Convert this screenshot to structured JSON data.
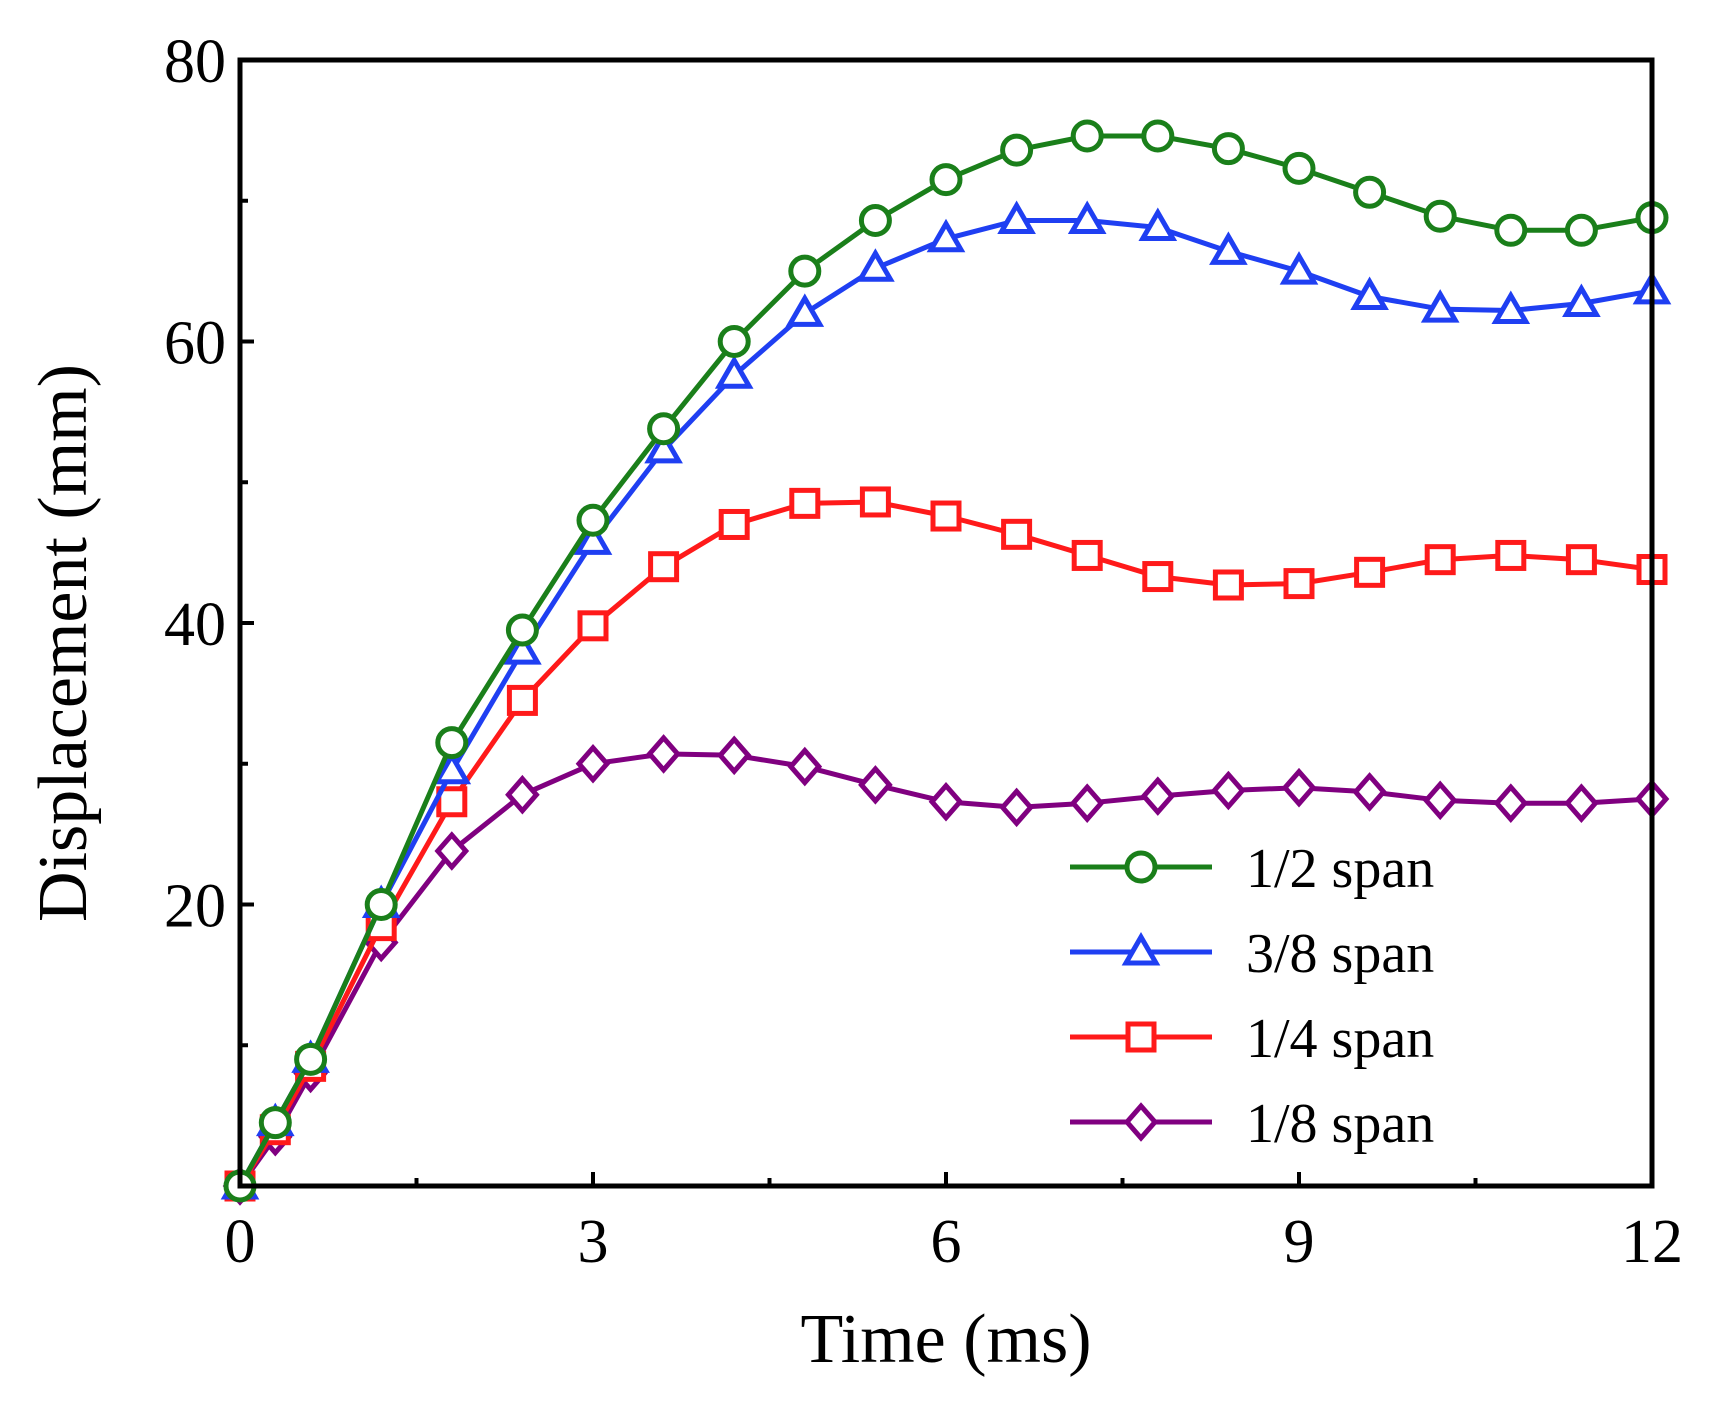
{
  "chart_data": {
    "type": "line",
    "xlabel": "Time (ms)",
    "ylabel": "Displacement  (mm)",
    "xlim": [
      0,
      12
    ],
    "ylim": [
      0,
      80
    ],
    "xticks": [
      0,
      3,
      6,
      9,
      12
    ],
    "yticks": [
      20,
      40,
      60,
      80
    ],
    "xtick_labels": [
      "0",
      "3",
      "6",
      "9",
      "12"
    ],
    "ytick_labels": [
      "20",
      "40",
      "60",
      "80"
    ],
    "grid": false,
    "legend_position": "bottom-right",
    "series": [
      {
        "name": "1/2 span",
        "color": "#1a7f1a",
        "marker": "circle",
        "x": [
          0,
          0.3,
          0.6,
          1.2,
          1.8,
          2.4,
          3.0,
          3.6,
          4.2,
          4.8,
          5.4,
          6.0,
          6.6,
          7.2,
          7.8,
          8.4,
          9.0,
          9.6,
          10.2,
          10.8,
          11.4,
          12.0
        ],
        "y": [
          0,
          4.5,
          9,
          20,
          31.5,
          39.5,
          47.3,
          53.8,
          60.0,
          65.0,
          68.6,
          71.5,
          73.6,
          74.6,
          74.6,
          73.7,
          72.3,
          70.6,
          68.9,
          67.9,
          67.9,
          68.8
        ]
      },
      {
        "name": "3/8 span",
        "color": "#1f3ff2",
        "marker": "triangle",
        "x": [
          0,
          0.3,
          0.6,
          1.2,
          1.8,
          2.4,
          3.0,
          3.6,
          4.2,
          4.8,
          5.4,
          6.0,
          6.6,
          7.2,
          7.8,
          8.4,
          9.0,
          9.6,
          10.2,
          10.8,
          11.4,
          12.0
        ],
        "y": [
          0,
          4.5,
          9,
          20,
          29.5,
          38.0,
          45.8,
          52.3,
          57.6,
          62.0,
          65.2,
          67.3,
          68.6,
          68.6,
          68.1,
          66.4,
          65.0,
          63.2,
          62.3,
          62.2,
          62.7,
          63.6
        ]
      },
      {
        "name": "1/4 span",
        "color": "#ff1a1a",
        "marker": "square",
        "x": [
          0,
          0.3,
          0.6,
          1.2,
          1.8,
          2.4,
          3.0,
          3.6,
          4.2,
          4.8,
          5.4,
          6.0,
          6.6,
          7.2,
          7.8,
          8.4,
          9.0,
          9.6,
          10.2,
          10.8,
          11.4,
          12.0
        ],
        "y": [
          0,
          4.0,
          8.5,
          18.5,
          27.3,
          34.5,
          39.8,
          44.0,
          47.0,
          48.5,
          48.6,
          47.6,
          46.3,
          44.8,
          43.3,
          42.7,
          42.8,
          43.6,
          44.5,
          44.8,
          44.5,
          43.8
        ]
      },
      {
        "name": "1/8 span",
        "color": "#800080",
        "marker": "diamond",
        "x": [
          0,
          0.3,
          0.6,
          1.2,
          1.8,
          2.4,
          3.0,
          3.6,
          4.2,
          4.8,
          5.4,
          6.0,
          6.6,
          7.2,
          7.8,
          8.4,
          9.0,
          9.6,
          10.2,
          10.8,
          11.4,
          12.0
        ],
        "y": [
          0,
          3.5,
          8.0,
          17.3,
          23.8,
          27.8,
          30.0,
          30.7,
          30.6,
          29.8,
          28.5,
          27.3,
          26.9,
          27.2,
          27.7,
          28.1,
          28.3,
          28.0,
          27.4,
          27.2,
          27.2,
          27.5
        ]
      }
    ]
  }
}
